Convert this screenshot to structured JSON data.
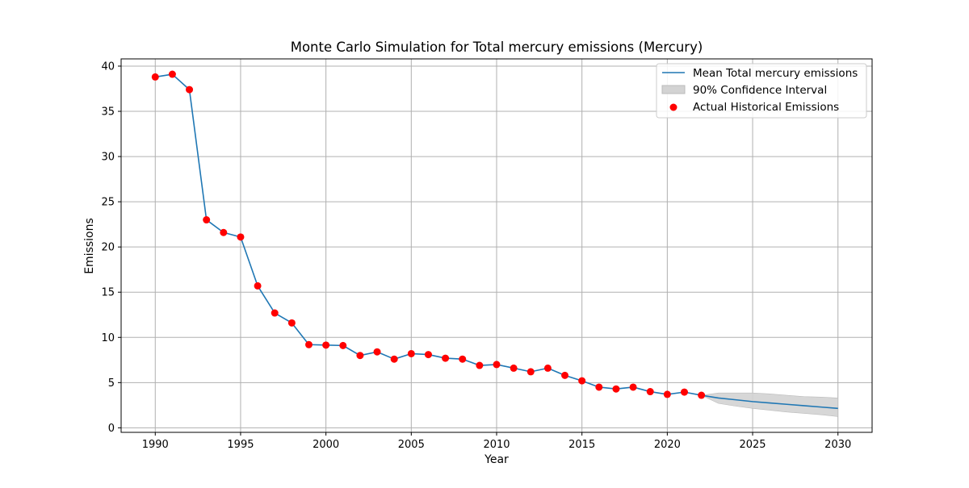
{
  "chart_data": {
    "type": "line",
    "title": "Monte Carlo Simulation for Total mercury emissions (Mercury)",
    "xlabel": "Year",
    "ylabel": "Emissions",
    "xlim": [
      1988,
      2032
    ],
    "ylim": [
      -0.5,
      40.8
    ],
    "xticks": [
      1990,
      1995,
      2000,
      2005,
      2010,
      2015,
      2020,
      2025,
      2030
    ],
    "yticks": [
      0,
      5,
      10,
      15,
      20,
      25,
      30,
      35,
      40
    ],
    "grid": true,
    "legend_position": "upper right",
    "legend": {
      "mean_label": "Mean Total mercury emissions",
      "ci_label": "90% Confidence Interval",
      "actual_label": "Actual Historical Emissions"
    },
    "colors": {
      "mean": "#1f77b4",
      "actual": "#ff0000",
      "ci_fill": "#d3d3d3",
      "ci_edge": "#bbbbbb",
      "grid": "#b0b0b0"
    },
    "series": [
      {
        "name": "Mean Total mercury emissions",
        "style": "line",
        "x": [
          1990,
          1991,
          1992,
          1993,
          1994,
          1995,
          1996,
          1997,
          1998,
          1999,
          2000,
          2001,
          2002,
          2003,
          2004,
          2005,
          2006,
          2007,
          2008,
          2009,
          2010,
          2011,
          2012,
          2013,
          2014,
          2015,
          2016,
          2017,
          2018,
          2019,
          2020,
          2021,
          2022,
          2023,
          2024,
          2025,
          2026,
          2027,
          2028,
          2029,
          2030
        ],
        "y": [
          38.8,
          39.1,
          37.4,
          23.0,
          21.6,
          21.1,
          15.7,
          12.7,
          11.6,
          9.2,
          9.15,
          9.1,
          8.0,
          8.4,
          7.6,
          8.2,
          8.1,
          7.7,
          7.6,
          6.9,
          7.0,
          6.6,
          6.2,
          6.6,
          5.8,
          5.2,
          4.5,
          4.3,
          4.5,
          4.0,
          3.7,
          3.95,
          3.6,
          3.3,
          3.1,
          2.9,
          2.75,
          2.6,
          2.45,
          2.3,
          2.15
        ]
      },
      {
        "name": "90% Confidence Interval",
        "style": "band",
        "x": [
          2022,
          2023,
          2024,
          2025,
          2026,
          2027,
          2028,
          2029,
          2030
        ],
        "lower": [
          3.6,
          2.7,
          2.4,
          2.15,
          1.95,
          1.75,
          1.6,
          1.45,
          1.25
        ],
        "upper": [
          3.6,
          3.85,
          3.85,
          3.85,
          3.75,
          3.6,
          3.45,
          3.4,
          3.3
        ]
      },
      {
        "name": "Actual Historical Emissions",
        "style": "scatter",
        "x": [
          1990,
          1991,
          1992,
          1993,
          1994,
          1995,
          1996,
          1997,
          1998,
          1999,
          2000,
          2001,
          2002,
          2003,
          2004,
          2005,
          2006,
          2007,
          2008,
          2009,
          2010,
          2011,
          2012,
          2013,
          2014,
          2015,
          2016,
          2017,
          2018,
          2019,
          2020,
          2021,
          2022
        ],
        "y": [
          38.8,
          39.1,
          37.4,
          23.0,
          21.6,
          21.1,
          15.7,
          12.7,
          11.6,
          9.2,
          9.15,
          9.1,
          8.0,
          8.4,
          7.6,
          8.2,
          8.1,
          7.7,
          7.6,
          6.9,
          7.0,
          6.6,
          6.2,
          6.6,
          5.8,
          5.2,
          4.5,
          4.3,
          4.5,
          4.0,
          3.7,
          3.95,
          3.6
        ]
      }
    ]
  }
}
